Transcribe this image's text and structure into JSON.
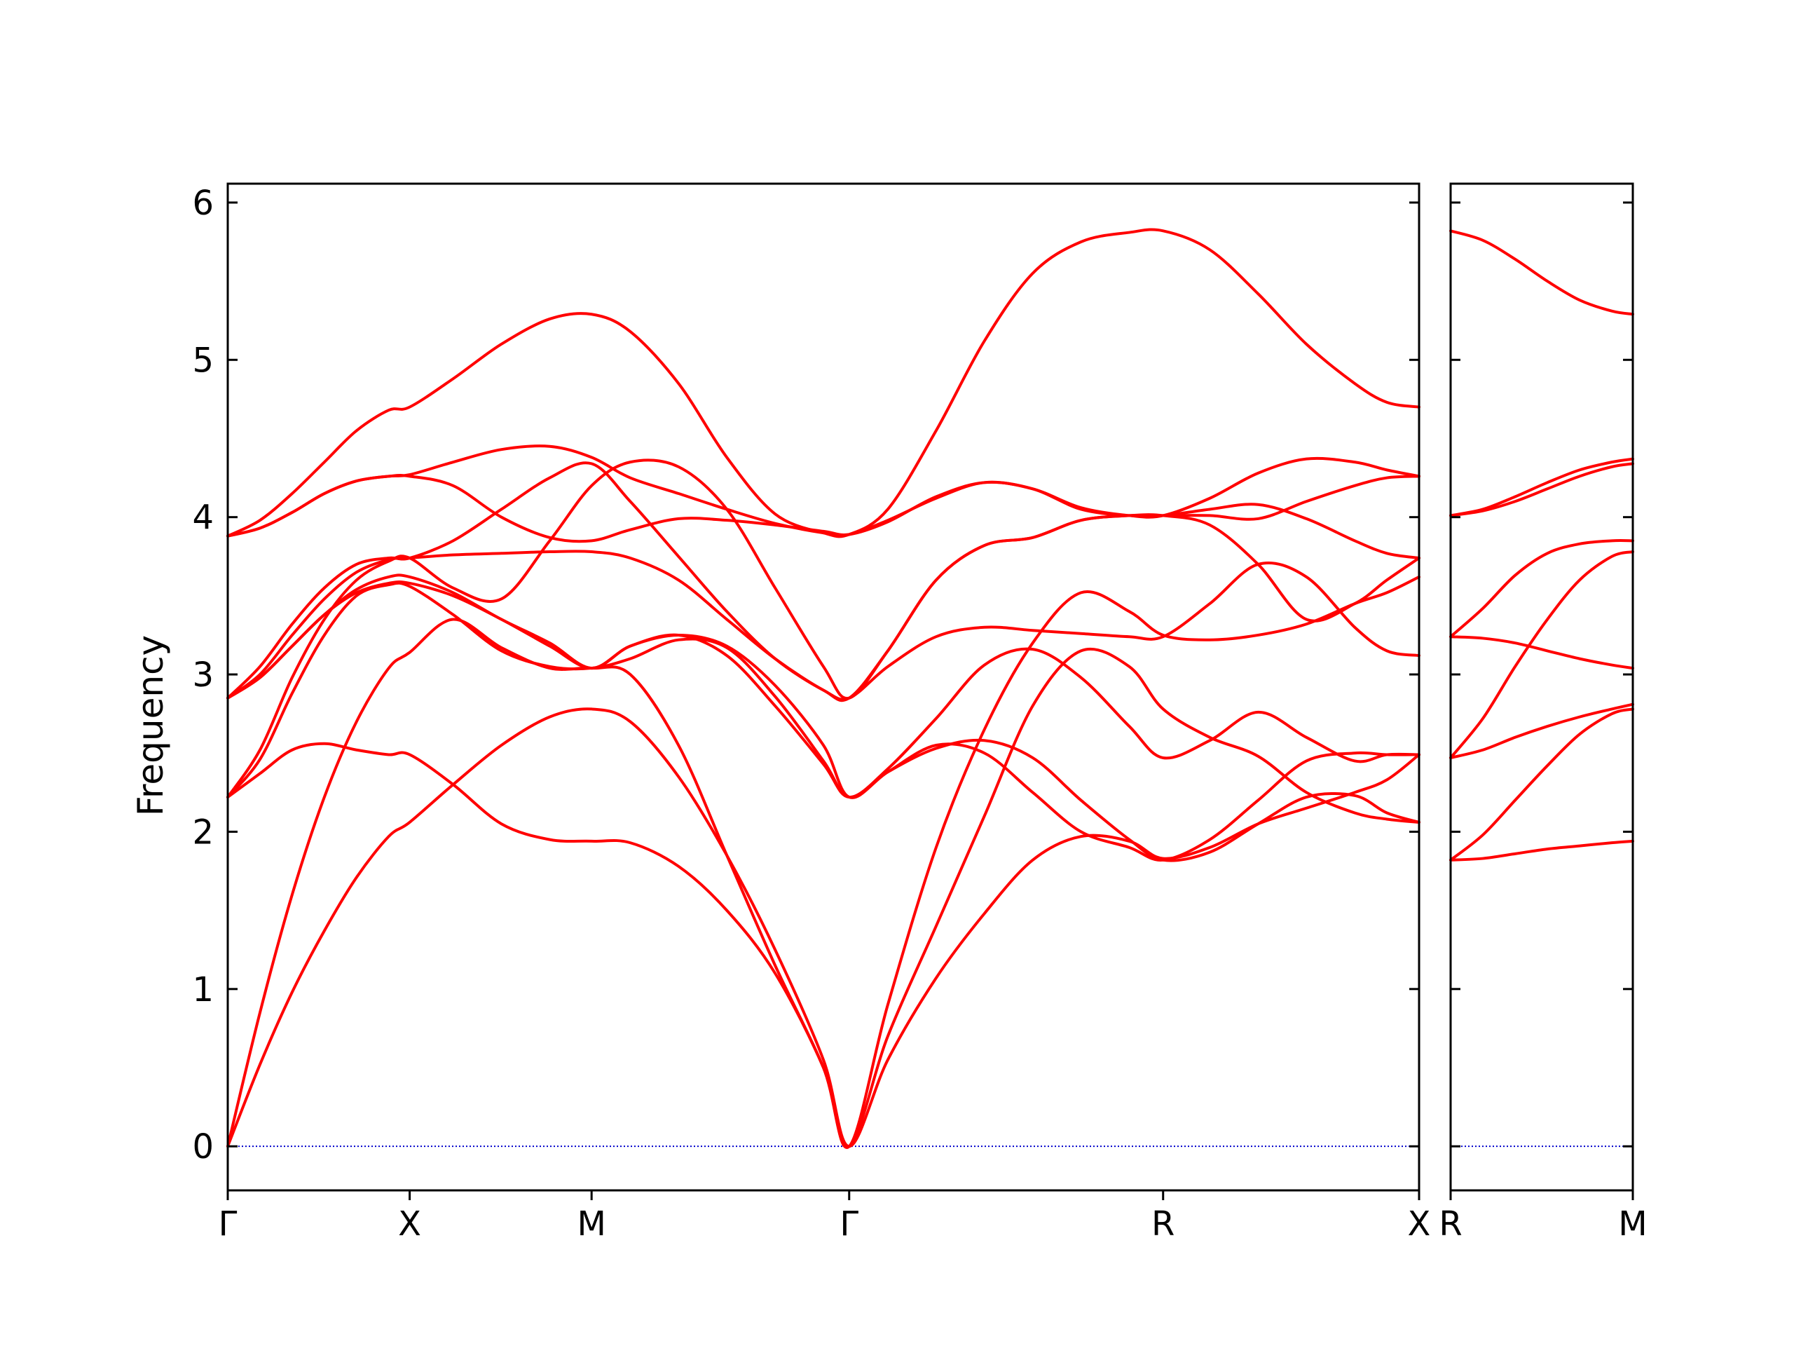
{
  "chart_data": {
    "type": "line",
    "title": "",
    "xlabel": "",
    "ylabel": "Frequency",
    "ylim": [
      -0.28,
      6.12
    ],
    "yticks": [
      0,
      1,
      2,
      3,
      4,
      5,
      6
    ],
    "grid": false,
    "legend": "none",
    "colors": {
      "bands": "#ff0000",
      "zero_line": "#0000cc",
      "axes": "#000000"
    },
    "panels": [
      {
        "name": "Γ-X-M-Γ-R-X",
        "xlim": [
          0,
          3.7
        ],
        "ticks": [
          {
            "x": 0,
            "label": "Γ"
          },
          {
            "x": 0.565,
            "label": "X"
          },
          {
            "x": 1.13,
            "label": "M"
          },
          {
            "x": 1.93,
            "label": "Γ"
          },
          {
            "x": 2.905,
            "label": "R"
          },
          {
            "x": 3.7,
            "label": "X"
          }
        ],
        "bands": [
          {
            "x": [
              0,
              0.1,
              0.2,
              0.3,
              0.4,
              0.5,
              0.565,
              0.7,
              0.85,
              1.0,
              1.13,
              1.25,
              1.4,
              1.55,
              1.7,
              1.85,
              1.93,
              2.05,
              2.2,
              2.35,
              2.5,
              2.65,
              2.8,
              2.905,
              3.05,
              3.2,
              3.35,
              3.5,
              3.6,
              3.7
            ],
            "y": [
              0,
              0.52,
              0.98,
              1.37,
              1.71,
              1.97,
              2.06,
              2.3,
              2.55,
              2.73,
              2.78,
              2.7,
              2.35,
              1.85,
              1.25,
              0.55,
              0,
              0.55,
              1.07,
              1.48,
              1.82,
              1.97,
              1.94,
              1.83,
              1.9,
              2.05,
              2.15,
              2.25,
              2.33,
              2.49
            ]
          },
          {
            "x": [
              0,
              0.1,
              0.2,
              0.3,
              0.4,
              0.5,
              0.565,
              0.7,
              0.85,
              1.0,
              1.13,
              1.25,
              1.4,
              1.55,
              1.7,
              1.85,
              1.93,
              2.05,
              2.2,
              2.35,
              2.5,
              2.65,
              2.8,
              2.905,
              3.05,
              3.2,
              3.35,
              3.5,
              3.6,
              3.7
            ],
            "y": [
              0,
              0.85,
              1.6,
              2.22,
              2.7,
              3.04,
              3.14,
              3.35,
              3.17,
              3.04,
              3.04,
              3.0,
              2.55,
              1.85,
              1.15,
              0.5,
              0,
              0.9,
              1.9,
              2.65,
              3.2,
              3.52,
              3.4,
              3.25,
              3.22,
              3.25,
              3.32,
              3.45,
              3.52,
              3.62
            ]
          },
          {
            "x": [
              0,
              0.1,
              0.2,
              0.3,
              0.4,
              0.5,
              0.565,
              0.7,
              0.85,
              1.0,
              1.13,
              1.25,
              1.4,
              1.55,
              1.7,
              1.85,
              1.93,
              2.05,
              2.2,
              2.35,
              2.5,
              2.65,
              2.8,
              2.905,
              3.05,
              3.2,
              3.35,
              3.5,
              3.6,
              3.7
            ],
            "y": [
              2.22,
              2.37,
              2.52,
              2.56,
              2.52,
              2.49,
              2.49,
              2.3,
              2.05,
              1.95,
              1.94,
              1.93,
              1.78,
              1.5,
              1.1,
              0.5,
              0,
              0.7,
              1.4,
              2.1,
              2.8,
              3.15,
              3.05,
              2.78,
              2.6,
              2.48,
              2.25,
              2.12,
              2.08,
              2.06
            ]
          },
          {
            "x": [
              0,
              0.1,
              0.2,
              0.3,
              0.4,
              0.5,
              0.565,
              0.7,
              0.85,
              1.0,
              1.13,
              1.25,
              1.4,
              1.55,
              1.7,
              1.85,
              1.93,
              2.05,
              2.2,
              2.35,
              2.5,
              2.65,
              2.8,
              2.905,
              3.05,
              3.2,
              3.35,
              3.5,
              3.6,
              3.7
            ],
            "y": [
              2.22,
              2.46,
              2.88,
              3.25,
              3.5,
              3.57,
              3.56,
              3.38,
              3.15,
              3.05,
              3.04,
              3.1,
              3.22,
              3.17,
              2.86,
              2.45,
              2.22,
              2.38,
              2.53,
              2.58,
              2.47,
              2.2,
              1.95,
              1.82,
              1.87,
              2.05,
              2.22,
              2.23,
              2.12,
              2.06
            ]
          },
          {
            "x": [
              0,
              0.1,
              0.2,
              0.3,
              0.4,
              0.5,
              0.565,
              0.7,
              0.85,
              1.0,
              1.13,
              1.25,
              1.4,
              1.55,
              1.7,
              1.85,
              1.93,
              2.05,
              2.2,
              2.35,
              2.5,
              2.65,
              2.8,
              2.905,
              3.05,
              3.2,
              3.35,
              3.5,
              3.6,
              3.7
            ],
            "y": [
              2.85,
              2.98,
              3.18,
              3.38,
              3.52,
              3.58,
              3.58,
              3.5,
              3.35,
              3.18,
              3.04,
              3.18,
              3.25,
              3.12,
              2.8,
              2.43,
              2.22,
              2.4,
              2.72,
              3.06,
              3.16,
              2.98,
              2.67,
              2.47,
              2.58,
              2.76,
              2.6,
              2.45,
              2.49,
              2.49
            ]
          },
          {
            "x": [
              0,
              0.1,
              0.2,
              0.3,
              0.4,
              0.5,
              0.565,
              0.7,
              0.85,
              1.0,
              1.13,
              1.25,
              1.4,
              1.55,
              1.7,
              1.85,
              1.93,
              2.05,
              2.2,
              2.35,
              2.5,
              2.65,
              2.8,
              2.905,
              3.05,
              3.2,
              3.35,
              3.5,
              3.6,
              3.7
            ],
            "y": [
              2.85,
              2.98,
              3.18,
              3.38,
              3.54,
              3.62,
              3.62,
              3.52,
              3.35,
              3.2,
              3.04,
              3.18,
              3.25,
              3.18,
              2.93,
              2.55,
              2.22,
              2.38,
              2.55,
              2.5,
              2.25,
              2.0,
              1.9,
              1.82,
              1.95,
              2.2,
              2.45,
              2.5,
              2.49,
              2.49
            ]
          },
          {
            "x": [
              0,
              0.1,
              0.2,
              0.3,
              0.4,
              0.5,
              0.565,
              0.7,
              0.85,
              1.0,
              1.13,
              1.25,
              1.4,
              1.55,
              1.7,
              1.85,
              1.93,
              2.05,
              2.2,
              2.35,
              2.5,
              2.65,
              2.8,
              2.905,
              3.05,
              3.2,
              3.35,
              3.5,
              3.6,
              3.7
            ],
            "y": [
              2.85,
              3.0,
              3.25,
              3.48,
              3.65,
              3.73,
              3.74,
              3.76,
              3.77,
              3.78,
              3.78,
              3.74,
              3.6,
              3.35,
              3.1,
              2.9,
              2.85,
              3.05,
              3.24,
              3.3,
              3.28,
              3.26,
              3.24,
              3.24,
              3.45,
              3.7,
              3.62,
              3.3,
              3.15,
              3.12
            ]
          },
          {
            "x": [
              0,
              0.1,
              0.2,
              0.3,
              0.4,
              0.5,
              0.565,
              0.7,
              0.85,
              1.0,
              1.13,
              1.25,
              1.4,
              1.55,
              1.7,
              1.85,
              1.93,
              2.05,
              2.2,
              2.35,
              2.5,
              2.65,
              2.8,
              2.905,
              3.05,
              3.2,
              3.35,
              3.5,
              3.6,
              3.7
            ],
            "y": [
              2.22,
              2.52,
              2.98,
              3.35,
              3.6,
              3.72,
              3.74,
              3.55,
              3.48,
              3.85,
              4.2,
              4.35,
              4.32,
              4.05,
              3.55,
              3.05,
              2.85,
              3.15,
              3.6,
              3.82,
              3.87,
              3.98,
              4.01,
              4.01,
              4.01,
              3.99,
              4.1,
              4.2,
              4.25,
              4.26
            ]
          },
          {
            "x": [
              0,
              0.1,
              0.2,
              0.3,
              0.4,
              0.5,
              0.565,
              0.7,
              0.85,
              1.0,
              1.13,
              1.25,
              1.4,
              1.55,
              1.7,
              1.85,
              1.93,
              2.05,
              2.2,
              2.35,
              2.5,
              2.65,
              2.8,
              2.905,
              3.05,
              3.2,
              3.35,
              3.5,
              3.6,
              3.7
            ],
            "y": [
              2.85,
              3.05,
              3.32,
              3.55,
              3.7,
              3.74,
              3.74,
              3.85,
              4.05,
              4.25,
              4.34,
              4.1,
              3.75,
              3.4,
              3.1,
              2.9,
              2.85,
              3.15,
              3.6,
              3.82,
              3.87,
              3.98,
              4.01,
              4.01,
              3.95,
              3.7,
              3.35,
              3.45,
              3.6,
              3.74
            ]
          },
          {
            "x": [
              0,
              0.1,
              0.2,
              0.3,
              0.4,
              0.5,
              0.565,
              0.7,
              0.85,
              1.0,
              1.13,
              1.25,
              1.4,
              1.55,
              1.7,
              1.85,
              1.93,
              2.05,
              2.2,
              2.35,
              2.5,
              2.65,
              2.8,
              2.905,
              3.05,
              3.2,
              3.35,
              3.5,
              3.6,
              3.7
            ],
            "y": [
              3.88,
              3.93,
              4.03,
              4.15,
              4.23,
              4.26,
              4.26,
              4.2,
              4.0,
              3.87,
              3.85,
              3.92,
              3.99,
              3.98,
              3.95,
              3.91,
              3.89,
              3.97,
              4.13,
              4.22,
              4.18,
              4.05,
              4.01,
              4.01,
              4.05,
              4.08,
              3.99,
              3.85,
              3.77,
              3.74
            ]
          },
          {
            "x": [
              0,
              0.1,
              0.2,
              0.3,
              0.4,
              0.5,
              0.565,
              0.7,
              0.85,
              1.0,
              1.13,
              1.25,
              1.4,
              1.55,
              1.7,
              1.85,
              1.93,
              2.05,
              2.2,
              2.35,
              2.5,
              2.65,
              2.8,
              2.905,
              3.05,
              3.2,
              3.35,
              3.5,
              3.6,
              3.7
            ],
            "y": [
              3.88,
              3.93,
              4.03,
              4.15,
              4.23,
              4.26,
              4.27,
              4.35,
              4.43,
              4.45,
              4.38,
              4.25,
              4.15,
              4.05,
              3.96,
              3.9,
              3.89,
              3.98,
              4.12,
              4.22,
              4.18,
              4.06,
              4.01,
              4.01,
              4.12,
              4.28,
              4.37,
              4.35,
              4.3,
              4.26
            ]
          },
          {
            "x": [
              0,
              0.1,
              0.2,
              0.3,
              0.4,
              0.5,
              0.565,
              0.7,
              0.85,
              1.0,
              1.13,
              1.25,
              1.4,
              1.55,
              1.7,
              1.85,
              1.93,
              2.05,
              2.2,
              2.35,
              2.5,
              2.65,
              2.8,
              2.905,
              3.05,
              3.2,
              3.35,
              3.5,
              3.6,
              3.7
            ],
            "y": [
              3.88,
              3.98,
              4.15,
              4.35,
              4.55,
              4.68,
              4.7,
              4.88,
              5.1,
              5.26,
              5.29,
              5.18,
              4.85,
              4.38,
              4.02,
              3.9,
              3.89,
              4.05,
              4.55,
              5.12,
              5.55,
              5.75,
              5.81,
              5.82,
              5.7,
              5.42,
              5.1,
              4.85,
              4.73,
              4.7
            ]
          }
        ]
      },
      {
        "name": "R-M",
        "xlim": [
          0,
          0.565
        ],
        "ticks": [
          {
            "x": 0,
            "label": "R"
          },
          {
            "x": 0.565,
            "label": "M"
          }
        ],
        "bands": [
          {
            "x": [
              0,
              0.1,
              0.2,
              0.3,
              0.4,
              0.5,
              0.565
            ],
            "y": [
              1.82,
              1.83,
              1.86,
              1.89,
              1.91,
              1.93,
              1.94
            ]
          },
          {
            "x": [
              0,
              0.1,
              0.2,
              0.3,
              0.4,
              0.5,
              0.565
            ],
            "y": [
              1.82,
              1.98,
              2.2,
              2.42,
              2.62,
              2.75,
              2.78
            ]
          },
          {
            "x": [
              0,
              0.1,
              0.2,
              0.3,
              0.4,
              0.5,
              0.565
            ],
            "y": [
              2.47,
              2.52,
              2.6,
              2.67,
              2.73,
              2.78,
              2.81
            ]
          },
          {
            "x": [
              0,
              0.1,
              0.2,
              0.3,
              0.4,
              0.5,
              0.565
            ],
            "y": [
              2.47,
              2.72,
              3.05,
              3.35,
              3.6,
              3.75,
              3.78
            ]
          },
          {
            "x": [
              0,
              0.1,
              0.2,
              0.3,
              0.4,
              0.5,
              0.565
            ],
            "y": [
              3.24,
              3.23,
              3.2,
              3.15,
              3.1,
              3.06,
              3.04
            ]
          },
          {
            "x": [
              0,
              0.1,
              0.2,
              0.3,
              0.4,
              0.5,
              0.565
            ],
            "y": [
              3.24,
              3.42,
              3.63,
              3.77,
              3.83,
              3.85,
              3.85
            ]
          },
          {
            "x": [
              0,
              0.1,
              0.2,
              0.3,
              0.4,
              0.5,
              0.565
            ],
            "y": [
              4.01,
              4.04,
              4.1,
              4.18,
              4.26,
              4.32,
              4.34
            ]
          },
          {
            "x": [
              0,
              0.1,
              0.2,
              0.3,
              0.4,
              0.5,
              0.565
            ],
            "y": [
              4.01,
              4.05,
              4.13,
              4.22,
              4.3,
              4.35,
              4.37
            ]
          },
          {
            "x": [
              0,
              0.1,
              0.2,
              0.3,
              0.4,
              0.5,
              0.565
            ],
            "y": [
              5.82,
              5.76,
              5.64,
              5.5,
              5.38,
              5.31,
              5.29
            ]
          }
        ]
      }
    ]
  }
}
